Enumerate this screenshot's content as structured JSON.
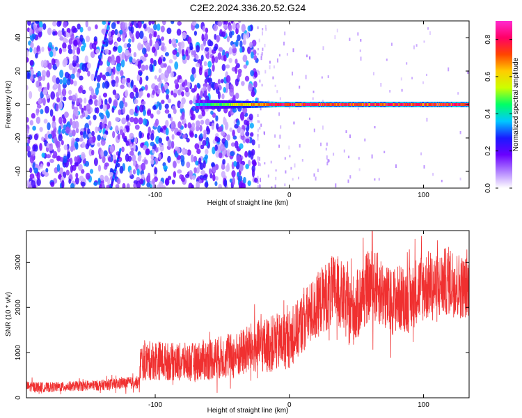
{
  "chart_data": [
    {
      "type": "heatmap",
      "title": "C2E2.2024.336.20.52.G24",
      "xlabel": "Height of straight line (km)",
      "ylabel": "Frequency (Hz)",
      "xlim": [
        -196,
        134
      ],
      "ylim": [
        -50,
        50
      ],
      "xticks": [
        -100,
        0,
        100
      ],
      "yticks": [
        -40,
        -20,
        0,
        20,
        40
      ],
      "grid": false,
      "colorbar": {
        "label": "Normalized spectral amplitude",
        "range": [
          0,
          0.9
        ],
        "ticks": [
          0.0,
          0.2,
          0.4,
          0.6,
          0.8
        ],
        "colormap": "rainbow",
        "colors": [
          "#ffffff",
          "#b080ff",
          "#6a00ff",
          "#1a1aff",
          "#00c8ff",
          "#00ff66",
          "#ccff00",
          "#ffcc00",
          "#ff4400",
          "#ff0066",
          "#ff2bd0"
        ]
      },
      "features": {
        "carrier_line": {
          "freq_hz": 0,
          "x_start_km": -70,
          "x_end_km": 134,
          "peak_amplitude": 0.8
        },
        "slanted_tracks": [
          {
            "x_km": [
              -145,
              -134
            ],
            "freq_hz": [
              15,
              50
            ]
          },
          {
            "x_km": [
              -133,
              -126
            ],
            "freq_hz": [
              -50,
              -27
            ]
          }
        ],
        "noise_region_x_km": [
          -196,
          -24
        ],
        "noise_amplitude": [
          0.05,
          0.35
        ]
      }
    },
    {
      "type": "line",
      "xlabel": "Height of straight line (km)",
      "ylabel": "SNR (10 * v/v)",
      "xlim": [
        -196,
        134
      ],
      "ylim": [
        0,
        3700
      ],
      "xticks": [
        -100,
        0,
        100
      ],
      "yticks": [
        0,
        1000,
        2000,
        3000
      ],
      "grid": false,
      "color": "#f03030",
      "series": [
        {
          "x": [
            -196,
            -180,
            -160,
            -140,
            -125,
            -112,
            -111,
            -100,
            -90,
            -80,
            -70,
            -60,
            -50,
            -40,
            -30,
            -20,
            -12,
            -5,
            0,
            5,
            10,
            15,
            20,
            25,
            30,
            35,
            40,
            45,
            50,
            55,
            60,
            65,
            70,
            75,
            80,
            85,
            90,
            95,
            100,
            105,
            110,
            115,
            120,
            125,
            130,
            134
          ],
          "mean": [
            250,
            230,
            260,
            280,
            320,
            340,
            780,
            840,
            800,
            790,
            800,
            860,
            900,
            920,
            1080,
            1150,
            1200,
            1250,
            1300,
            1450,
            1680,
            1850,
            2000,
            2200,
            2300,
            2400,
            2200,
            1900,
            2000,
            2300,
            2500,
            2450,
            2300,
            2100,
            2200,
            2200,
            2150,
            2400,
            2450,
            2500,
            2400,
            2550,
            2600,
            2500,
            2450,
            2450
          ],
          "spread": [
            120,
            110,
            110,
            120,
            130,
            140,
            420,
            450,
            420,
            430,
            420,
            480,
            480,
            520,
            560,
            600,
            640,
            650,
            650,
            650,
            680,
            700,
            720,
            750,
            800,
            800,
            780,
            800,
            800,
            800,
            800,
            800,
            780,
            750,
            760,
            740,
            740,
            760,
            780,
            780,
            760,
            760,
            780,
            760,
            700,
            700
          ]
        }
      ]
    }
  ]
}
